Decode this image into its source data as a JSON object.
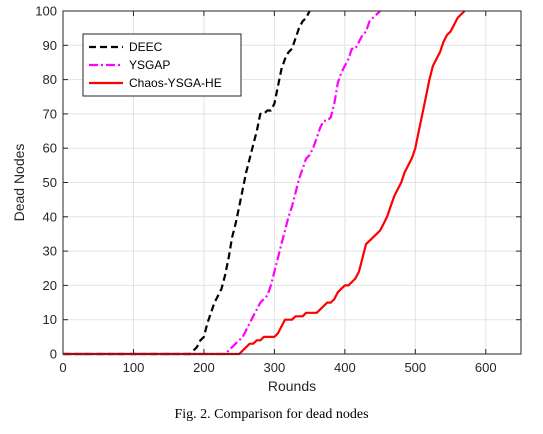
{
  "chart_data": {
    "type": "line",
    "title": "",
    "xlabel": "Rounds",
    "ylabel": "Dead Nodes",
    "xlim": [
      0,
      650
    ],
    "ylim": [
      0,
      100
    ],
    "xticks": [
      0,
      100,
      200,
      300,
      400,
      500,
      600
    ],
    "yticks": [
      0,
      10,
      20,
      30,
      40,
      50,
      60,
      70,
      80,
      90,
      100
    ],
    "grid": true,
    "legend_position": "top-left",
    "series": [
      {
        "name": "DEEC",
        "color": "#000000",
        "style": "dashed",
        "x": [
          0,
          180,
          185,
          190,
          195,
          200,
          205,
          210,
          215,
          220,
          225,
          230,
          235,
          240,
          245,
          250,
          255,
          260,
          265,
          270,
          275,
          280,
          285,
          290,
          295,
          300,
          305,
          310,
          315,
          320,
          325,
          330,
          335,
          340,
          345,
          350
        ],
        "y": [
          0,
          0,
          1,
          2,
          4,
          5,
          9,
          12,
          15,
          17,
          19,
          23,
          28,
          34,
          38,
          43,
          48,
          53,
          57,
          61,
          65,
          70,
          70,
          71,
          71,
          73,
          78,
          83,
          86,
          88,
          89,
          92,
          95,
          97,
          98,
          100
        ]
      },
      {
        "name": "YSGAP",
        "color": "#ff00ff",
        "style": "dashdot",
        "x": [
          0,
          230,
          235,
          240,
          245,
          250,
          255,
          260,
          265,
          270,
          275,
          280,
          285,
          290,
          295,
          300,
          305,
          310,
          315,
          320,
          325,
          330,
          335,
          340,
          345,
          350,
          355,
          360,
          365,
          370,
          375,
          380,
          385,
          390,
          395,
          400,
          405,
          410,
          415,
          420,
          425,
          430,
          435,
          440,
          445,
          450
        ],
        "y": [
          0,
          0,
          1,
          2,
          3,
          4,
          5,
          7,
          9,
          11,
          13,
          15,
          16,
          17,
          20,
          24,
          28,
          32,
          36,
          40,
          43,
          47,
          51,
          54,
          57,
          58,
          60,
          63,
          66,
          68,
          68,
          69,
          73,
          79,
          82,
          84,
          86,
          89,
          89,
          91,
          93,
          94,
          97,
          98,
          99,
          100
        ]
      },
      {
        "name": "Chaos-YSGA-HE",
        "color": "#ff0000",
        "style": "solid",
        "x": [
          0,
          250,
          255,
          260,
          265,
          270,
          275,
          280,
          285,
          290,
          295,
          300,
          305,
          310,
          315,
          320,
          325,
          330,
          335,
          340,
          345,
          350,
          355,
          360,
          365,
          370,
          375,
          380,
          385,
          390,
          395,
          400,
          405,
          410,
          415,
          420,
          425,
          430,
          435,
          440,
          445,
          450,
          455,
          460,
          465,
          470,
          475,
          480,
          485,
          490,
          495,
          500,
          505,
          510,
          515,
          520,
          525,
          530,
          535,
          540,
          545,
          550,
          555,
          560,
          565,
          570
        ],
        "y": [
          0,
          0,
          1,
          2,
          3,
          3,
          4,
          4,
          5,
          5,
          5,
          5,
          6,
          8,
          10,
          10,
          10,
          11,
          11,
          11,
          12,
          12,
          12,
          12,
          13,
          14,
          15,
          15,
          16,
          18,
          19,
          20,
          20,
          21,
          22,
          24,
          28,
          32,
          33,
          34,
          35,
          36,
          38,
          40,
          43,
          46,
          48,
          50,
          53,
          55,
          57,
          60,
          65,
          70,
          75,
          80,
          84,
          86,
          88,
          91,
          93,
          94,
          96,
          98,
          99,
          100
        ]
      }
    ]
  },
  "caption": "Fig. 2. Comparison for dead nodes"
}
